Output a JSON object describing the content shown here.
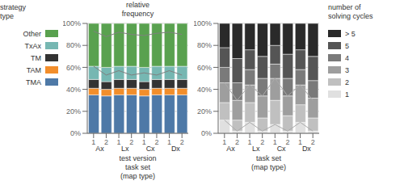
{
  "chart_data": [
    {
      "type": "bar",
      "stacked": true,
      "grid": true,
      "legend": "left",
      "ylabel": "relative\nfrequency",
      "xlabel": "test version",
      "annotations": [
        "task set\n(map type)"
      ],
      "legend_title": "strategy\ntype",
      "categories": [
        "1",
        "2",
        "1",
        "2",
        "1",
        "2",
        "1",
        "2"
      ],
      "group_labels": [
        "Ax",
        "Lx",
        "Cx",
        "Dx"
      ],
      "ylim": [
        0,
        1.0
      ],
      "yticks": [
        {
          "value": 0,
          "label": "0%"
        },
        {
          "value": 0.2,
          "label": "20%"
        },
        {
          "value": 0.4,
          "label": "40%"
        },
        {
          "value": 0.6,
          "label": "60%"
        },
        {
          "value": 0.8,
          "label": "80%"
        },
        {
          "value": 1.0,
          "label": "100%"
        }
      ],
      "series": [
        {
          "name": "TMA",
          "color": "#4e79a7",
          "values": [
            0.35,
            0.34,
            0.35,
            0.35,
            0.34,
            0.35,
            0.35,
            0.35
          ]
        },
        {
          "name": "TAM",
          "color": "#f28e2b",
          "values": [
            0.06,
            0.06,
            0.06,
            0.06,
            0.06,
            0.06,
            0.06,
            0.06
          ]
        },
        {
          "name": "TM",
          "color": "#333333",
          "values": [
            0.08,
            0.07,
            0.08,
            0.08,
            0.07,
            0.08,
            0.08,
            0.08
          ]
        },
        {
          "name": "TxAx",
          "color": "#76b7b2",
          "values": [
            0.12,
            0.13,
            0.12,
            0.12,
            0.13,
            0.12,
            0.12,
            0.12
          ]
        },
        {
          "name": "Other",
          "color": "#59a14f",
          "values": [
            0.39,
            0.4,
            0.39,
            0.39,
            0.4,
            0.39,
            0.39,
            0.39
          ]
        },
        {
          "type": "line",
          "color": "#808080",
          "values": [
            0.61,
            0.53,
            0.57,
            0.53,
            0.55,
            0.53,
            0.57,
            0.53
          ]
        },
        {
          "type": "line",
          "color": "#808080",
          "values": [
            0.93,
            0.88,
            0.92,
            0.9,
            0.89,
            0.91,
            0.92,
            0.9
          ]
        }
      ]
    },
    {
      "type": "bar",
      "stacked": true,
      "grid": true,
      "legend": "right",
      "xlabel": "task set",
      "annotations": [
        "(map type)"
      ],
      "legend_title": "number of\nsolving cycles",
      "categories": [
        "1",
        "2",
        "1",
        "2",
        "1",
        "2",
        "1",
        "2"
      ],
      "group_labels": [
        "Ax",
        "Lx",
        "Cx",
        "Dx"
      ],
      "ylim": [
        0,
        1.0
      ],
      "yticks": [
        {
          "value": 0,
          "label": "0%"
        },
        {
          "value": 0.2,
          "label": "20%"
        },
        {
          "value": 0.4,
          "label": "40%"
        },
        {
          "value": 0.6,
          "label": "60%"
        },
        {
          "value": 0.8,
          "label": "80%"
        },
        {
          "value": 1.0,
          "label": "100%"
        }
      ],
      "series": [
        {
          "name": "1",
          "color": "#e0e0e0",
          "values": [
            0.12,
            0.02,
            0.1,
            0.02,
            0.08,
            0.02,
            0.1,
            0.02
          ]
        },
        {
          "name": "2",
          "color": "#c0c0c0",
          "values": [
            0.16,
            0.1,
            0.18,
            0.12,
            0.22,
            0.14,
            0.16,
            0.12
          ]
        },
        {
          "name": "3",
          "color": "#9e9e9e",
          "values": [
            0.18,
            0.18,
            0.16,
            0.2,
            0.2,
            0.18,
            0.18,
            0.18
          ]
        },
        {
          "name": "4",
          "color": "#7a7a7a",
          "values": [
            0.14,
            0.16,
            0.14,
            0.16,
            0.13,
            0.16,
            0.14,
            0.16
          ]
        },
        {
          "name": "5",
          "color": "#555555",
          "values": [
            0.18,
            0.22,
            0.18,
            0.2,
            0.17,
            0.22,
            0.18,
            0.22
          ]
        },
        {
          "name": "> 5",
          "color": "#2a2a2a",
          "values": [
            0.22,
            0.32,
            0.24,
            0.3,
            0.2,
            0.28,
            0.24,
            0.3
          ]
        },
        {
          "type": "line",
          "color": "#aaaaaa",
          "values": [
            0.12,
            0.02,
            0.1,
            0.02,
            0.08,
            0.02,
            0.1,
            0.02
          ]
        },
        {
          "type": "line",
          "color": "#aaaaaa",
          "values": [
            0.46,
            0.3,
            0.44,
            0.34,
            0.5,
            0.34,
            0.44,
            0.3
          ]
        }
      ]
    }
  ]
}
